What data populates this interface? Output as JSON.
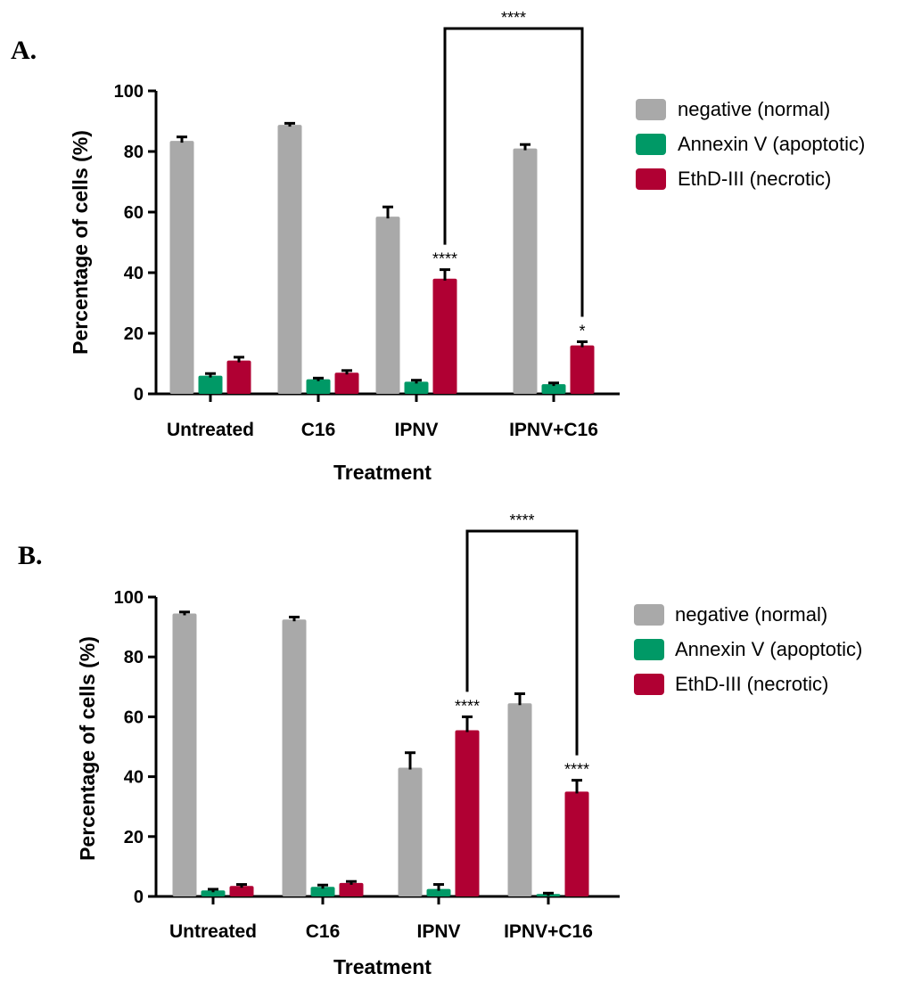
{
  "chart_data": [
    {
      "type": "bar",
      "panel_label": "A.",
      "categories": [
        "Untreated",
        "C16",
        "IPNV",
        "IPNV+C16"
      ],
      "series": [
        {
          "name": "negative (normal)",
          "color": "#a9a9a9",
          "values": [
            83.5,
            88.8,
            58.5,
            81.0
          ],
          "errors": [
            1.3,
            0.5,
            3.2,
            1.3
          ]
        },
        {
          "name": "Annexin V (apoptotic)",
          "color": "#009966",
          "values": [
            6.0,
            4.8,
            4.0,
            3.2
          ],
          "errors": [
            0.7,
            0.4,
            0.5,
            0.4
          ]
        },
        {
          "name": "EthD-III (necrotic)",
          "color": "#b00033",
          "values": [
            11.0,
            7.0,
            38.0,
            16.0
          ],
          "errors": [
            1.1,
            0.7,
            3.0,
            1.2
          ]
        }
      ],
      "xlabel": "Treatment",
      "ylabel": "Percentage of cells (%)",
      "ylim": [
        0,
        100
      ],
      "yticks": [
        0,
        20,
        40,
        60,
        80,
        100
      ],
      "annotations": [
        {
          "category": 2,
          "series": 2,
          "text": "****"
        },
        {
          "category": 3,
          "series": 2,
          "text": "*"
        }
      ],
      "comparison": {
        "from_category": 2,
        "to_category": 3,
        "series": 2,
        "text": "****"
      },
      "legend_position": "right"
    },
    {
      "type": "bar",
      "panel_label": "B.",
      "categories": [
        "Untreated",
        "C16",
        "IPNV",
        "IPNV+C16"
      ],
      "series": [
        {
          "name": "negative (normal)",
          "color": "#a9a9a9",
          "values": [
            94.5,
            92.5,
            43.0,
            64.5
          ],
          "errors": [
            0.5,
            0.8,
            5.0,
            3.2
          ]
        },
        {
          "name": "Annexin V (apoptotic)",
          "color": "#009966",
          "values": [
            2.0,
            3.2,
            2.5,
            0.8
          ],
          "errors": [
            0.4,
            0.6,
            1.5,
            0.3
          ]
        },
        {
          "name": "EthD-III (necrotic)",
          "color": "#b00033",
          "values": [
            3.5,
            4.5,
            55.5,
            35.0
          ],
          "errors": [
            0.5,
            0.5,
            4.5,
            3.8
          ]
        }
      ],
      "xlabel": "Treatment",
      "ylabel": "Percentage of cells (%)",
      "ylim": [
        0,
        100
      ],
      "yticks": [
        0,
        20,
        40,
        60,
        80,
        100
      ],
      "annotations": [
        {
          "category": 2,
          "series": 2,
          "text": "****"
        },
        {
          "category": 3,
          "series": 2,
          "text": "****"
        }
      ],
      "comparison": {
        "from_category": 2,
        "to_category": 3,
        "series": 2,
        "text": "****"
      },
      "legend_position": "right"
    }
  ]
}
